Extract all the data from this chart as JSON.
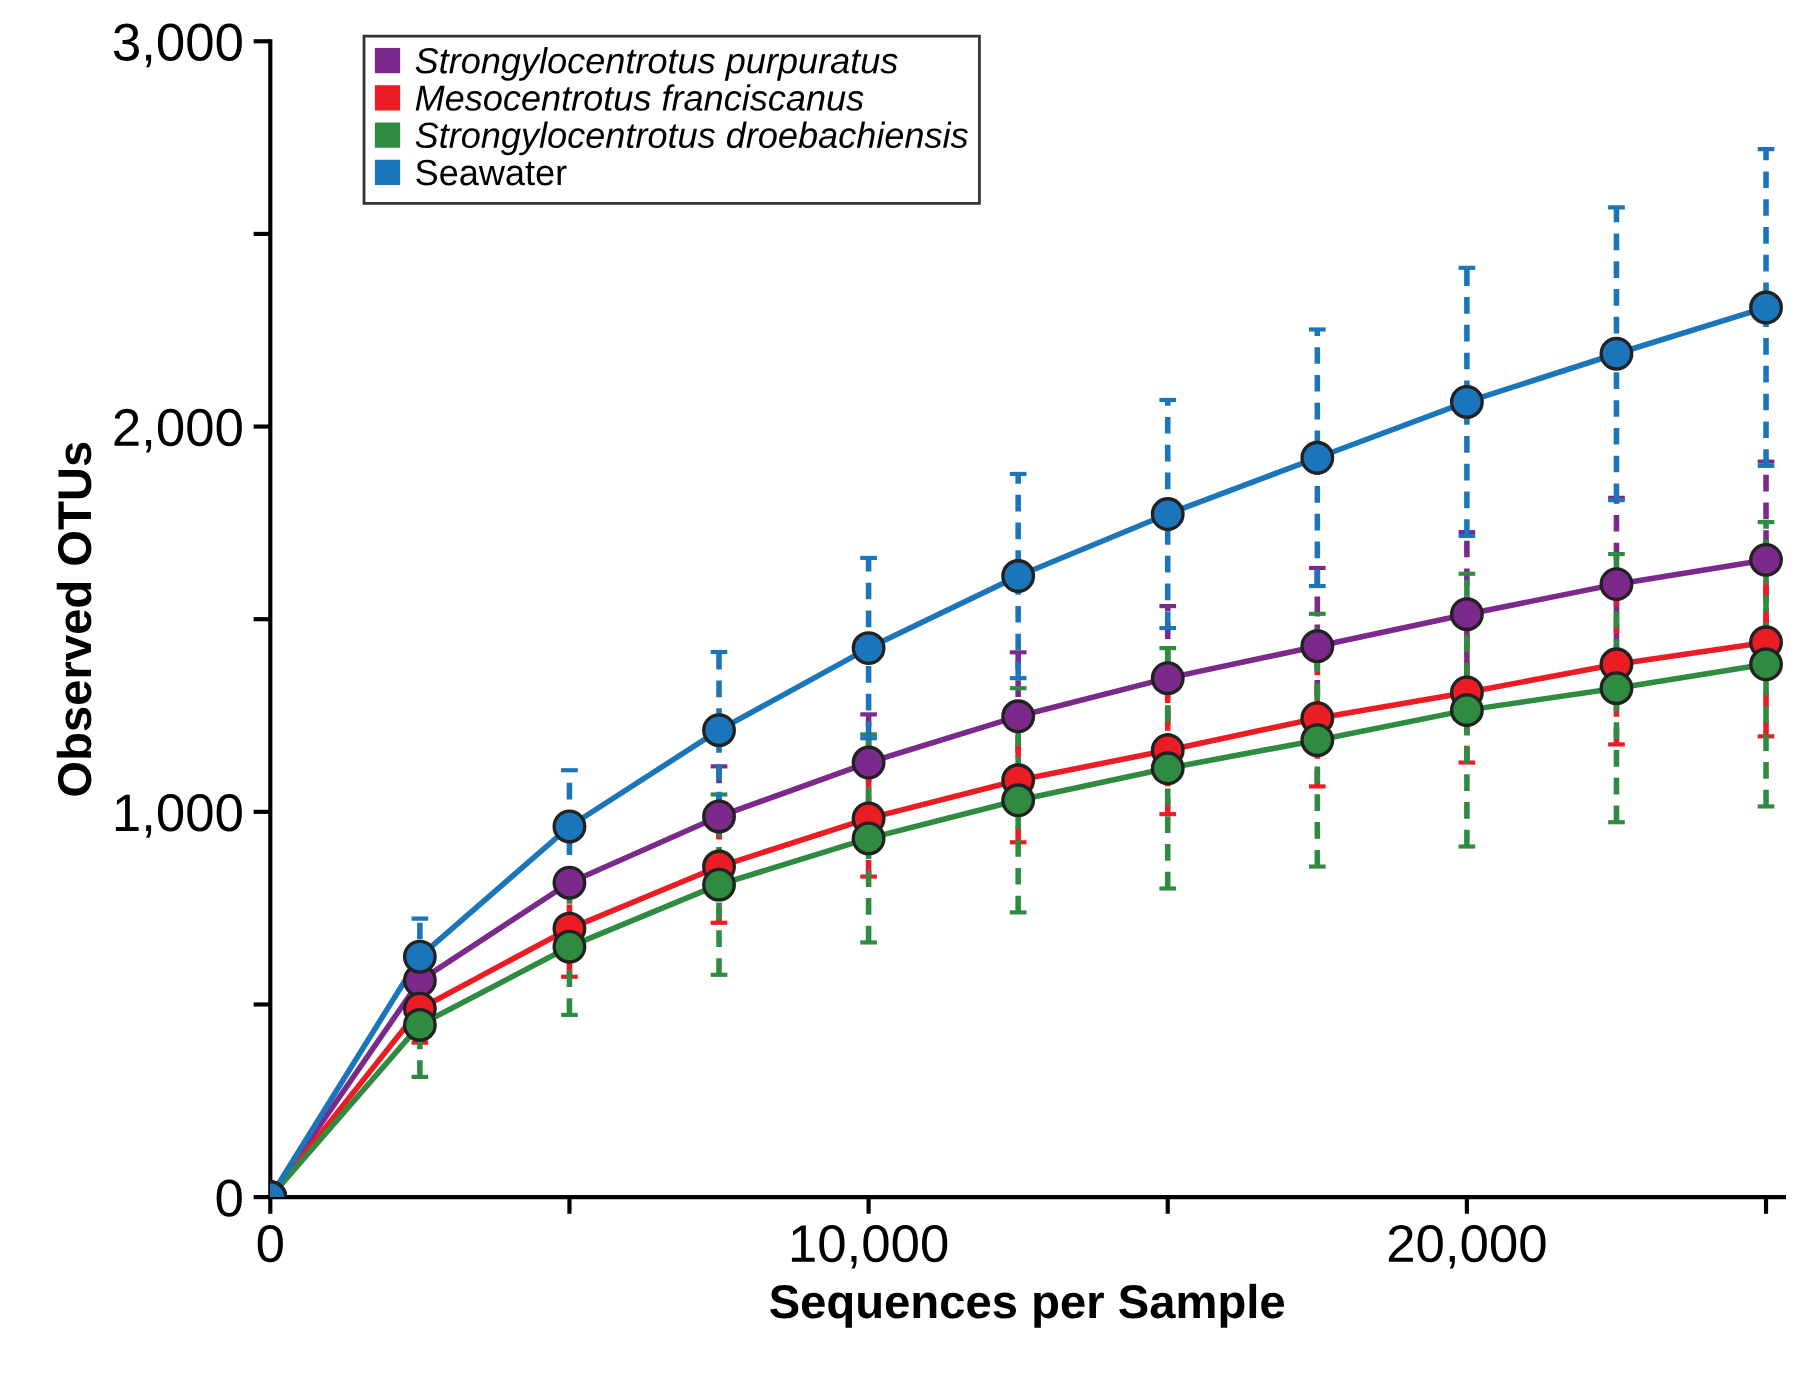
{
  "chart_data": {
    "type": "line",
    "xlabel": "Sequences per Sample",
    "ylabel": "Observed OTUs",
    "x": [
      0,
      2500,
      5000,
      7500,
      10000,
      12500,
      15000,
      17500,
      20000,
      22500,
      25000
    ],
    "series": [
      {
        "name": "Strongylocentrotus purpuratus",
        "color": "#7b2a8c",
        "values": [
          0,
          562,
          816,
          988,
          1128,
          1248,
          1347,
          1430,
          1513,
          1591,
          1654
        ],
        "errors": [
          null,
          null,
          null,
          130,
          125,
          166,
          187,
          203,
          213,
          224,
          255
        ]
      },
      {
        "name": "Mesocentrotus franciscanus",
        "color": "#ec1c24",
        "values": [
          0,
          489,
          697,
          858,
          983,
          1082,
          1160,
          1243,
          1310,
          1383,
          1440
        ],
        "errors": [
          null,
          88,
          125,
          146,
          151,
          161,
          166,
          177,
          182,
          208,
          244
        ]
      },
      {
        "name": "Strongylocentrotus droebachiensis",
        "color": "#2e8b40",
        "values": [
          0,
          447,
          650,
          811,
          931,
          1030,
          1113,
          1186,
          1264,
          1321,
          1383
        ],
        "errors": [
          null,
          135,
          177,
          234,
          270,
          291,
          312,
          328,
          354,
          348,
          369
        ]
      },
      {
        "name": "Seawater",
        "color": "#1b75bb",
        "values": [
          0,
          624,
          962,
          1212,
          1425,
          1612,
          1773,
          1919,
          2064,
          2189,
          2309
        ],
        "errors": [
          null,
          99,
          146,
          203,
          234,
          265,
          296,
          333,
          348,
          380,
          411
        ]
      }
    ],
    "xlim": [
      0,
      25300
    ],
    "ylim": [
      0,
      3000
    ],
    "xticks": [
      {
        "value": 0,
        "label": "0"
      },
      {
        "value": 5000,
        "label": null
      },
      {
        "value": 10000,
        "label": "10,000"
      },
      {
        "value": 15000,
        "label": null
      },
      {
        "value": 20000,
        "label": "20,000"
      },
      {
        "value": 25000,
        "label": null
      }
    ],
    "yticks": [
      {
        "value": 0,
        "label": "0"
      },
      {
        "value": 500,
        "label": null
      },
      {
        "value": 1000,
        "label": "1,000"
      },
      {
        "value": 1500,
        "label": null
      },
      {
        "value": 2000,
        "label": "2,000"
      },
      {
        "value": 2500,
        "label": null
      },
      {
        "value": 3000,
        "label": "3,000"
      }
    ],
    "marker": "circle",
    "line_style": "solid",
    "grid": false,
    "legend": "top left"
  }
}
